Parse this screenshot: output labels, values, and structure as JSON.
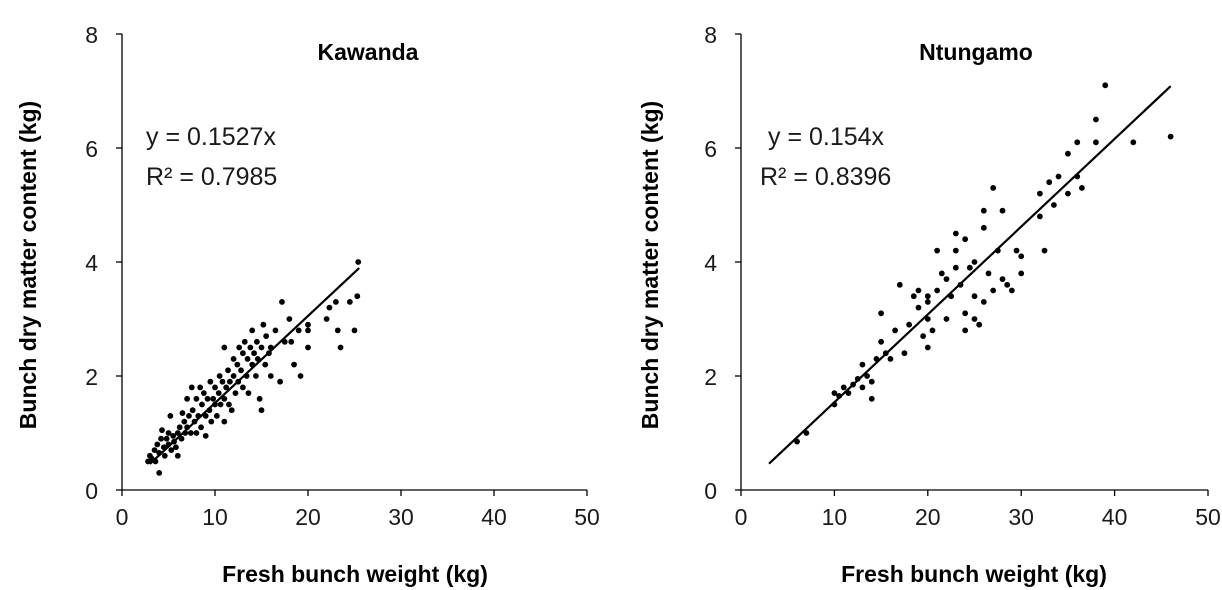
{
  "chart_data": [
    {
      "type": "scatter",
      "title": "Kawanda",
      "xlabel": "Fresh bunch weight (kg)",
      "ylabel": "Bunch dry matter content (kg)",
      "xlim": [
        0,
        50
      ],
      "ylim": [
        0,
        8
      ],
      "xticks": [
        0,
        10,
        20,
        30,
        40,
        50
      ],
      "yticks": [
        0,
        2,
        4,
        6,
        8
      ],
      "grid": false,
      "trendline": {
        "slope": 0.1527,
        "x_range": [
          3,
          25.5
        ]
      },
      "annotations": [
        "y = 0.1527x",
        "R² = 0.7985"
      ],
      "points": [
        [
          2.8,
          0.5
        ],
        [
          3.0,
          0.6
        ],
        [
          3.2,
          0.55
        ],
        [
          3.5,
          0.7
        ],
        [
          3.6,
          0.5
        ],
        [
          3.8,
          0.8
        ],
        [
          4.0,
          0.65
        ],
        [
          4.0,
          0.3
        ],
        [
          4.2,
          0.9
        ],
        [
          4.3,
          1.05
        ],
        [
          4.5,
          0.75
        ],
        [
          4.6,
          0.6
        ],
        [
          4.8,
          0.9
        ],
        [
          5.0,
          0.8
        ],
        [
          5.0,
          1.0
        ],
        [
          5.2,
          1.3
        ],
        [
          5.3,
          0.7
        ],
        [
          5.5,
          0.95
        ],
        [
          5.6,
          0.85
        ],
        [
          5.8,
          0.75
        ],
        [
          6.0,
          1.0
        ],
        [
          6.0,
          0.6
        ],
        [
          6.2,
          1.1
        ],
        [
          6.4,
          0.9
        ],
        [
          6.5,
          1.35
        ],
        [
          6.7,
          1.2
        ],
        [
          6.8,
          1.0
        ],
        [
          7.0,
          1.6
        ],
        [
          7.0,
          1.1
        ],
        [
          7.2,
          1.3
        ],
        [
          7.4,
          1.0
        ],
        [
          7.5,
          1.8
        ],
        [
          7.6,
          1.4
        ],
        [
          7.8,
          1.2
        ],
        [
          8.0,
          1.6
        ],
        [
          8.0,
          1.0
        ],
        [
          8.2,
          1.3
        ],
        [
          8.4,
          1.8
        ],
        [
          8.5,
          1.1
        ],
        [
          8.6,
          1.5
        ],
        [
          8.8,
          1.7
        ],
        [
          9.0,
          1.3
        ],
        [
          9.0,
          0.95
        ],
        [
          9.2,
          1.6
        ],
        [
          9.4,
          1.4
        ],
        [
          9.5,
          1.9
        ],
        [
          9.6,
          1.2
        ],
        [
          9.8,
          1.6
        ],
        [
          10.0,
          1.5
        ],
        [
          10.0,
          1.8
        ],
        [
          10.2,
          1.3
        ],
        [
          10.4,
          1.7
        ],
        [
          10.5,
          2.0
        ],
        [
          10.6,
          1.5
        ],
        [
          10.8,
          1.9
        ],
        [
          11.0,
          1.6
        ],
        [
          11.0,
          2.5
        ],
        [
          11.0,
          1.2
        ],
        [
          11.2,
          1.8
        ],
        [
          11.4,
          2.1
        ],
        [
          11.5,
          1.5
        ],
        [
          11.6,
          1.9
        ],
        [
          11.8,
          1.4
        ],
        [
          12.0,
          2.0
        ],
        [
          12.0,
          2.3
        ],
        [
          12.2,
          1.7
        ],
        [
          12.4,
          2.2
        ],
        [
          12.5,
          1.9
        ],
        [
          12.6,
          2.5
        ],
        [
          12.8,
          2.1
        ],
        [
          13.0,
          1.8
        ],
        [
          13.0,
          2.4
        ],
        [
          13.2,
          2.6
        ],
        [
          13.4,
          2.0
        ],
        [
          13.5,
          2.3
        ],
        [
          13.6,
          1.7
        ],
        [
          13.8,
          2.5
        ],
        [
          14.0,
          2.2
        ],
        [
          14.0,
          2.8
        ],
        [
          14.2,
          2.4
        ],
        [
          14.4,
          2.0
        ],
        [
          14.5,
          2.6
        ],
        [
          14.6,
          2.3
        ],
        [
          14.8,
          1.6
        ],
        [
          15.0,
          2.5
        ],
        [
          15.0,
          1.4
        ],
        [
          15.2,
          2.9
        ],
        [
          15.4,
          2.2
        ],
        [
          15.5,
          2.7
        ],
        [
          15.8,
          2.4
        ],
        [
          16.0,
          2.0
        ],
        [
          16.0,
          2.5
        ],
        [
          16.5,
          2.8
        ],
        [
          17.0,
          1.9
        ],
        [
          17.2,
          3.3
        ],
        [
          17.5,
          2.6
        ],
        [
          18.0,
          3.0
        ],
        [
          18.2,
          2.6
        ],
        [
          18.5,
          2.2
        ],
        [
          19.0,
          2.8
        ],
        [
          19.2,
          2.0
        ],
        [
          20.0,
          2.9
        ],
        [
          20.0,
          2.5
        ],
        [
          20.0,
          2.8
        ],
        [
          22.0,
          3.0
        ],
        [
          22.3,
          3.2
        ],
        [
          23.0,
          3.3
        ],
        [
          23.2,
          2.8
        ],
        [
          23.5,
          2.5
        ],
        [
          24.5,
          3.3
        ],
        [
          25.0,
          2.8
        ],
        [
          25.3,
          3.4
        ],
        [
          25.4,
          4.0
        ]
      ]
    },
    {
      "type": "scatter",
      "title": "Ntungamo",
      "xlabel": "Fresh bunch weight (kg)",
      "ylabel": "Bunch dry matter content (kg)",
      "xlim": [
        0,
        50
      ],
      "ylim": [
        0,
        8
      ],
      "xticks": [
        0,
        10,
        20,
        30,
        40,
        50
      ],
      "yticks": [
        0,
        2,
        4,
        6,
        8
      ],
      "grid": false,
      "trendline": {
        "slope": 0.154,
        "x_range": [
          3,
          46
        ]
      },
      "annotations": [
        "y = 0.154x",
        "R² = 0.8396"
      ],
      "points": [
        [
          6.0,
          0.85
        ],
        [
          7.0,
          1.0
        ],
        [
          10.0,
          1.5
        ],
        [
          10.0,
          1.7
        ],
        [
          10.5,
          1.65
        ],
        [
          11.0,
          1.8
        ],
        [
          11.5,
          1.7
        ],
        [
          12.0,
          1.85
        ],
        [
          12.5,
          1.95
        ],
        [
          13.0,
          1.8
        ],
        [
          13.0,
          2.2
        ],
        [
          13.5,
          2.0
        ],
        [
          14.0,
          1.9
        ],
        [
          14.0,
          1.6
        ],
        [
          14.5,
          2.3
        ],
        [
          15.0,
          2.6
        ],
        [
          15.0,
          3.1
        ],
        [
          15.5,
          2.4
        ],
        [
          16.0,
          2.3
        ],
        [
          16.5,
          2.8
        ],
        [
          17.0,
          3.6
        ],
        [
          17.5,
          2.4
        ],
        [
          18.0,
          2.9
        ],
        [
          18.5,
          3.4
        ],
        [
          19.0,
          3.2
        ],
        [
          19.0,
          3.5
        ],
        [
          19.5,
          2.7
        ],
        [
          20.0,
          2.5
        ],
        [
          20.0,
          3.0
        ],
        [
          20.0,
          3.3
        ],
        [
          20.0,
          3.4
        ],
        [
          20.5,
          2.8
        ],
        [
          21.0,
          3.5
        ],
        [
          21.0,
          4.2
        ],
        [
          21.5,
          3.8
        ],
        [
          22.0,
          3.0
        ],
        [
          22.0,
          3.7
        ],
        [
          22.5,
          3.4
        ],
        [
          23.0,
          3.9
        ],
        [
          23.0,
          4.5
        ],
        [
          23.0,
          4.2
        ],
        [
          23.5,
          3.6
        ],
        [
          24.0,
          3.1
        ],
        [
          24.0,
          4.4
        ],
        [
          24.0,
          2.8
        ],
        [
          24.5,
          3.9
        ],
        [
          25.0,
          3.0
        ],
        [
          25.0,
          3.4
        ],
        [
          25.0,
          4.0
        ],
        [
          25.5,
          2.9
        ],
        [
          26.0,
          3.3
        ],
        [
          26.0,
          4.6
        ],
        [
          26.0,
          4.9
        ],
        [
          26.5,
          3.8
        ],
        [
          27.0,
          3.5
        ],
        [
          27.0,
          5.3
        ],
        [
          27.5,
          4.2
        ],
        [
          28.0,
          3.7
        ],
        [
          28.0,
          4.9
        ],
        [
          28.5,
          3.6
        ],
        [
          29.0,
          3.5
        ],
        [
          29.5,
          4.2
        ],
        [
          30.0,
          3.8
        ],
        [
          30.0,
          4.1
        ],
        [
          32.0,
          4.8
        ],
        [
          32.0,
          5.2
        ],
        [
          32.5,
          4.2
        ],
        [
          33.0,
          5.4
        ],
        [
          33.5,
          5.0
        ],
        [
          34.0,
          5.5
        ],
        [
          35.0,
          5.9
        ],
        [
          35.0,
          5.2
        ],
        [
          36.0,
          6.1
        ],
        [
          36.0,
          5.5
        ],
        [
          36.5,
          5.3
        ],
        [
          38.0,
          6.5
        ],
        [
          38.0,
          6.1
        ],
        [
          39.0,
          7.1
        ],
        [
          42.0,
          6.1
        ],
        [
          46.0,
          6.2
        ]
      ]
    }
  ]
}
